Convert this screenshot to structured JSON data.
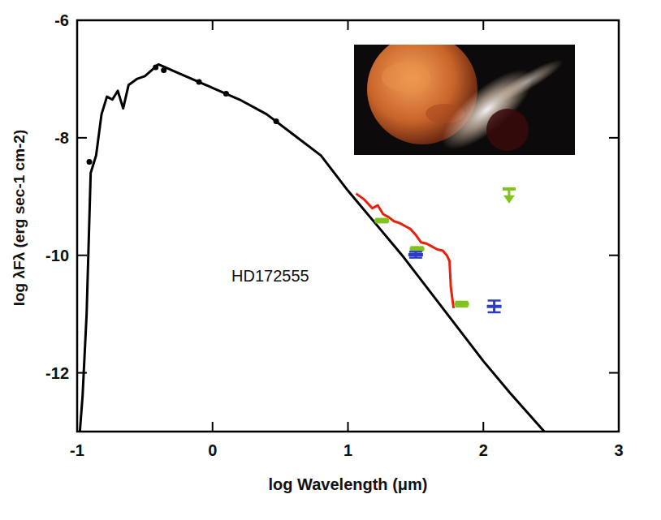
{
  "chart_data": {
    "type": "line",
    "x_label": "log Wavelength (μm)",
    "y_label": "log λFλ (erg sec-1 cm-2)",
    "annotation": "HD172555",
    "xlim": [
      -1,
      3
    ],
    "ylim": [
      -13,
      -6
    ],
    "xticks": [
      -1,
      0,
      1,
      2,
      3
    ],
    "yticks": [
      -6,
      -8,
      -10,
      -12
    ],
    "grid": false,
    "series": [
      {
        "type": "line",
        "color": "#000000",
        "line_style": "solid",
        "x": [
          -0.98,
          -0.96,
          -0.93,
          -0.9,
          -0.86,
          -0.82,
          -0.78,
          -0.74,
          -0.7,
          -0.66,
          -0.62,
          -0.56,
          -0.5,
          -0.45,
          -0.4,
          -0.35,
          -0.3,
          -0.2,
          -0.1,
          0.0,
          0.2,
          0.4,
          0.6,
          0.8,
          1.0,
          1.2,
          1.4,
          1.6,
          1.8,
          2.0,
          2.2,
          2.45
        ],
        "values": [
          -13.0,
          -12.4,
          -11.0,
          -8.6,
          -8.3,
          -7.6,
          -7.3,
          -7.35,
          -7.2,
          -7.5,
          -7.1,
          -7.0,
          -6.95,
          -6.85,
          -6.75,
          -6.8,
          -6.85,
          -6.95,
          -7.05,
          -7.15,
          -7.35,
          -7.6,
          -7.95,
          -8.3,
          -8.9,
          -9.45,
          -10.0,
          -10.6,
          -11.2,
          -11.8,
          -12.35,
          -13.0
        ]
      },
      {
        "type": "scatter",
        "color": "#000000",
        "marker": "circle",
        "x": [
          -0.91,
          -0.42,
          -0.36,
          -0.1,
          0.1,
          0.47
        ],
        "values": [
          -8.41,
          -6.8,
          -6.85,
          -7.05,
          -7.25,
          -7.72
        ]
      },
      {
        "type": "line",
        "color": "#e8200c",
        "line_style": "solid",
        "x": [
          1.06,
          1.12,
          1.18,
          1.22,
          1.26,
          1.3,
          1.34,
          1.38,
          1.42,
          1.46,
          1.5,
          1.54,
          1.58,
          1.62,
          1.66,
          1.7,
          1.73,
          1.75,
          1.76,
          1.78
        ],
        "values": [
          -8.95,
          -9.05,
          -9.2,
          -9.15,
          -9.3,
          -9.35,
          -9.42,
          -9.45,
          -9.5,
          -9.55,
          -9.65,
          -9.78,
          -9.8,
          -9.85,
          -9.9,
          -9.92,
          -10.0,
          -10.1,
          -10.55,
          -10.9
        ]
      },
      {
        "type": "scatter",
        "color": "#7fc31c",
        "marker": "dash",
        "x": [
          1.25,
          1.51,
          1.84
        ],
        "values": [
          -9.41,
          -9.89,
          -10.83
        ],
        "errors": [
          0.03,
          0.03,
          0.04
        ]
      },
      {
        "type": "scatter",
        "color": "#7fc31c",
        "marker": "arrow-down",
        "x": [
          2.19
        ],
        "values": [
          -8.87
        ]
      },
      {
        "type": "scatter",
        "color": "#2a3cc8",
        "marker": "dash",
        "x": [
          1.5,
          2.08
        ],
        "values": [
          -9.99,
          -10.87
        ],
        "errors": [
          0.05,
          0.1
        ]
      }
    ]
  }
}
